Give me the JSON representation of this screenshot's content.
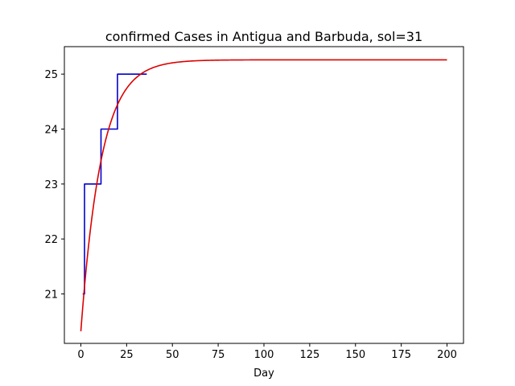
{
  "chart_data": {
    "type": "line",
    "title": "confirmed Cases in Antigua and Barbuda, sol=31",
    "xlabel": "Day",
    "ylabel": "",
    "xlim": [
      -9,
      209
    ],
    "ylim": [
      20.1,
      25.5
    ],
    "xticks": [
      0,
      25,
      50,
      75,
      100,
      125,
      150,
      175,
      200
    ],
    "yticks": [
      21,
      22,
      23,
      24,
      25
    ],
    "grid": false,
    "series": [
      {
        "color": "#0000cc",
        "style": "step",
        "x": [
          1,
          2,
          2,
          11,
          11,
          20,
          20,
          36
        ],
        "y": [
          21,
          21,
          23,
          23,
          24,
          24,
          25,
          25
        ]
      },
      {
        "color": "#dd0000",
        "style": "curve",
        "model": {
          "type": "exponential_saturation",
          "start": 20.32,
          "plateau": 25.26,
          "rate": 0.09,
          "x_start": 0,
          "x_end": 200
        }
      }
    ]
  }
}
